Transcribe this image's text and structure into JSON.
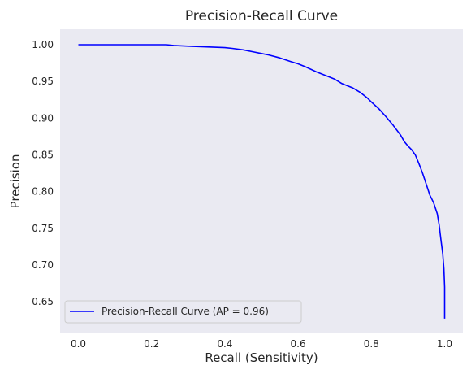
{
  "chart_data": {
    "type": "line",
    "title": "Precision-Recall Curve",
    "xlabel": "Recall (Sensitivity)",
    "ylabel": "Precision",
    "xlim": [
      -0.05,
      1.05
    ],
    "ylim": [
      0.607,
      1.021
    ],
    "xticks": [
      0.0,
      0.2,
      0.4,
      0.6,
      0.8,
      1.0
    ],
    "xtick_labels": [
      "0.0",
      "0.2",
      "0.4",
      "0.6",
      "0.8",
      "1.0"
    ],
    "yticks": [
      0.65,
      0.7,
      0.75,
      0.8,
      0.85,
      0.9,
      0.95,
      1.0
    ],
    "ytick_labels": [
      "0.65",
      "0.70",
      "0.75",
      "0.80",
      "0.85",
      "0.90",
      "0.95",
      "1.00"
    ],
    "grid": false,
    "legend_position": "lower-left",
    "colors": {
      "plot_background": "#eaeaf2",
      "line": "#0000ff"
    },
    "series": [
      {
        "name": "Precision-Recall Curve (AP = 0.96)",
        "x": [
          0.0,
          0.05,
          0.1,
          0.15,
          0.2,
          0.24,
          0.26,
          0.3,
          0.35,
          0.4,
          0.42,
          0.45,
          0.48,
          0.5,
          0.52,
          0.55,
          0.58,
          0.6,
          0.62,
          0.65,
          0.68,
          0.7,
          0.72,
          0.75,
          0.77,
          0.79,
          0.8,
          0.82,
          0.84,
          0.86,
          0.88,
          0.89,
          0.9,
          0.91,
          0.92,
          0.93,
          0.94,
          0.95,
          0.96,
          0.97,
          0.98,
          0.985,
          0.99,
          0.995,
          0.998,
          1.0,
          1.0
        ],
        "y": [
          1.0,
          1.0,
          1.0,
          1.0,
          1.0,
          1.0,
          0.999,
          0.998,
          0.997,
          0.996,
          0.995,
          0.993,
          0.99,
          0.988,
          0.986,
          0.982,
          0.977,
          0.974,
          0.97,
          0.963,
          0.957,
          0.953,
          0.947,
          0.941,
          0.935,
          0.927,
          0.922,
          0.913,
          0.902,
          0.89,
          0.877,
          0.868,
          0.862,
          0.857,
          0.85,
          0.838,
          0.825,
          0.81,
          0.795,
          0.785,
          0.77,
          0.755,
          0.735,
          0.715,
          0.695,
          0.67,
          0.627
        ]
      }
    ]
  }
}
